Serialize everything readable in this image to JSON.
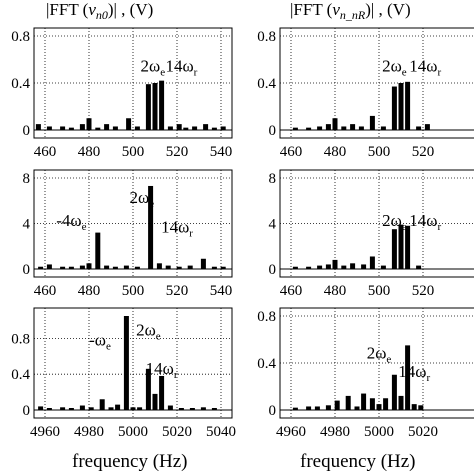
{
  "chart_data": [
    {
      "type": "bar",
      "title": "|FFT (v_n0)| , (V)",
      "title_parts": [
        "|FFT (",
        "v",
        "n0",
        ")| , (V)"
      ],
      "ylim": [
        0,
        0.8
      ],
      "yticks": [
        "0",
        "0.4",
        "0.8"
      ],
      "ytick_vals": [
        0,
        0.4,
        0.8
      ],
      "xlim": [
        455,
        545
      ],
      "xticks": [
        "460",
        "480",
        "500",
        "520",
        "540"
      ],
      "xtick_vals": [
        460,
        480,
        500,
        520,
        540
      ],
      "x": [
        457,
        462,
        468,
        472,
        477,
        480,
        484,
        488,
        492,
        498,
        502,
        507,
        510,
        513,
        517,
        521,
        524,
        528,
        533,
        537,
        541
      ],
      "values": [
        0.05,
        0.03,
        0.03,
        0.02,
        0.05,
        0.1,
        0.02,
        0.05,
        0.03,
        0.1,
        0.03,
        0.39,
        0.4,
        0.42,
        0.03,
        0.05,
        0.02,
        0.03,
        0.05,
        0.02,
        0.03
      ],
      "annotations": [
        {
          "text": "2ω",
          "sub": "e",
          "x": 509,
          "y": 0.5
        },
        {
          "text": "14ω",
          "sub": "r",
          "x": 522,
          "y": 0.5
        }
      ]
    },
    {
      "type": "bar",
      "title": "|FFT (v_n_nR)| , (V)",
      "title_parts": [
        "|FFT (",
        "v",
        "n_nR",
        ")| , (V)"
      ],
      "ylim": [
        0,
        0.8
      ],
      "yticks": [
        "0",
        "0.4",
        "0.8"
      ],
      "ytick_vals": [
        0,
        0.4,
        0.8
      ],
      "xlim": [
        455,
        545
      ],
      "xticks": [
        "460",
        "480",
        "500",
        "520"
      ],
      "xtick_vals": [
        460,
        480,
        500,
        520
      ],
      "x": [
        462,
        468,
        473,
        477,
        480,
        484,
        488,
        492,
        497,
        502,
        507,
        510,
        513,
        518,
        522
      ],
      "values": [
        0.02,
        0.02,
        0.03,
        0.05,
        0.1,
        0.03,
        0.05,
        0.03,
        0.12,
        0.03,
        0.37,
        0.4,
        0.41,
        0.03,
        0.05
      ],
      "annotations": [
        {
          "text": "2ω",
          "sub": "e",
          "x": 507,
          "y": 0.5
        },
        {
          "text": "14ω",
          "sub": "r",
          "x": 521,
          "y": 0.5
        }
      ]
    },
    {
      "type": "bar",
      "ylim": [
        0,
        8
      ],
      "yticks": [
        "0",
        "4",
        "8"
      ],
      "ytick_vals": [
        0,
        4,
        8
      ],
      "xlim": [
        455,
        545
      ],
      "xticks": [
        "460",
        "480",
        "500",
        "520",
        "540"
      ],
      "xtick_vals": [
        460,
        480,
        500,
        520,
        540
      ],
      "x": [
        458,
        462,
        468,
        472,
        477,
        480,
        484,
        488,
        492,
        497,
        502,
        508,
        512,
        516,
        521,
        526,
        532,
        537,
        541
      ],
      "values": [
        0.2,
        0.4,
        0.2,
        0.2,
        0.3,
        0.5,
        3.2,
        0.3,
        0.2,
        0.3,
        0.2,
        7.3,
        0.5,
        0.3,
        0.2,
        0.3,
        0.9,
        0.2,
        0.2
      ],
      "annotations": [
        {
          "text": "2ω",
          "sub": "e",
          "x": 504,
          "y": 5.8
        },
        {
          "text": "-4ω",
          "sub": "e",
          "x": 472,
          "y": 3.8
        },
        {
          "text": "14ω",
          "sub": "r",
          "x": 520,
          "y": 3.2
        }
      ]
    },
    {
      "type": "bar",
      "ylim": [
        0,
        8
      ],
      "yticks": [
        "0",
        "4",
        "8"
      ],
      "ytick_vals": [
        0,
        4,
        8
      ],
      "xlim": [
        455,
        545
      ],
      "xticks": [
        "460",
        "480",
        "500",
        "520"
      ],
      "xtick_vals": [
        460,
        480,
        500,
        520
      ],
      "x": [
        462,
        468,
        473,
        477,
        480,
        484,
        488,
        493,
        497,
        502,
        507,
        510,
        513,
        518
      ],
      "values": [
        0.2,
        0.2,
        0.3,
        0.4,
        0.8,
        0.3,
        0.5,
        0.4,
        1.1,
        0.3,
        3.5,
        3.9,
        3.8,
        0.3
      ],
      "annotations": [
        {
          "text": "2ω",
          "sub": "e",
          "x": 507,
          "y": 3.8
        },
        {
          "text": "14ω",
          "sub": "r",
          "x": 521,
          "y": 3.8
        }
      ]
    },
    {
      "type": "bar",
      "ylim": [
        0,
        1.05
      ],
      "yticks": [
        "0",
        "0.4",
        "0.8"
      ],
      "ytick_vals": [
        0,
        0.4,
        0.8
      ],
      "xlim": [
        4955,
        5045
      ],
      "xticks": [
        "4960",
        "4980",
        "5000",
        "5020",
        "5040"
      ],
      "xtick_vals": [
        4960,
        4980,
        5000,
        5020,
        5040
      ],
      "x": [
        4958,
        4962,
        4968,
        4972,
        4977,
        4981,
        4986,
        4990,
        4993,
        4997,
        5000,
        5003,
        5007,
        5010,
        5013,
        5017,
        5022,
        5027,
        5032,
        5037
      ],
      "values": [
        0.04,
        0.02,
        0.03,
        0.02,
        0.05,
        0.03,
        0.12,
        0.03,
        0.06,
        1.05,
        0.03,
        0.03,
        0.46,
        0.18,
        0.38,
        0.05,
        0.02,
        0.02,
        0.03,
        0.02
      ],
      "annotations": [
        {
          "text": "-ω",
          "sub": "e",
          "x": 4985,
          "y": 0.72
        },
        {
          "text": "2ω",
          "sub": "e",
          "x": 5007,
          "y": 0.83
        },
        {
          "text": "14ω",
          "sub": "r",
          "x": 5013,
          "y": 0.4
        }
      ]
    },
    {
      "type": "bar",
      "ylim": [
        0,
        0.8
      ],
      "yticks": [
        "0",
        "0.4",
        "0.8"
      ],
      "ytick_vals": [
        0,
        0.4,
        0.8
      ],
      "xlim": [
        4955,
        5045
      ],
      "xticks": [
        "4960",
        "4980",
        "5000",
        "5020"
      ],
      "xtick_vals": [
        4960,
        4980,
        5000,
        5020
      ],
      "x": [
        4962,
        4968,
        4972,
        4977,
        4981,
        4986,
        4990,
        4993,
        4997,
        5000,
        5003,
        5007,
        5010,
        5013,
        5016,
        5019
      ],
      "values": [
        0.02,
        0.03,
        0.03,
        0.04,
        0.08,
        0.12,
        0.03,
        0.14,
        0.1,
        0.05,
        0.1,
        0.3,
        0.12,
        0.55,
        0.05,
        0.04
      ],
      "annotations": [
        {
          "text": "2ω",
          "sub": "e",
          "x": 5000,
          "y": 0.44
        },
        {
          "text": "14ω",
          "sub": "r",
          "x": 5016,
          "y": 0.28
        }
      ]
    }
  ],
  "xlabel": "frequency (Hz)"
}
